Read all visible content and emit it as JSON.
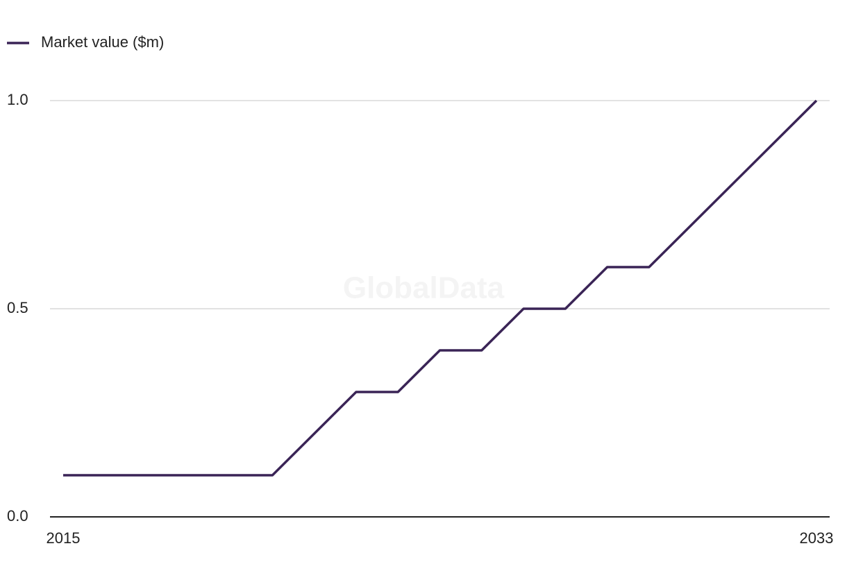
{
  "chart_data": {
    "type": "line",
    "watermark": "GlobalData",
    "x": [
      2015,
      2016,
      2017,
      2018,
      2019,
      2020,
      2021,
      2022,
      2023,
      2024,
      2025,
      2026,
      2027,
      2028,
      2029,
      2030,
      2031,
      2032,
      2033
    ],
    "series": [
      {
        "name": "Market value ($m)",
        "color": "#3a2456",
        "values": [
          0.1,
          0.1,
          0.1,
          0.1,
          0.1,
          0.1,
          0.2,
          0.3,
          0.3,
          0.4,
          0.4,
          0.5,
          0.5,
          0.6,
          0.6,
          0.7,
          0.8,
          0.9,
          1.0
        ]
      }
    ],
    "xlim": [
      2015,
      2033
    ],
    "xticks": [
      2015,
      2033
    ],
    "ylim": [
      0,
      1.0
    ],
    "yticks": [
      {
        "value": 0,
        "label": "0.0"
      },
      0.5,
      {
        "value": 1,
        "label": "1.0"
      }
    ],
    "grid": true,
    "legend": "top-left"
  }
}
